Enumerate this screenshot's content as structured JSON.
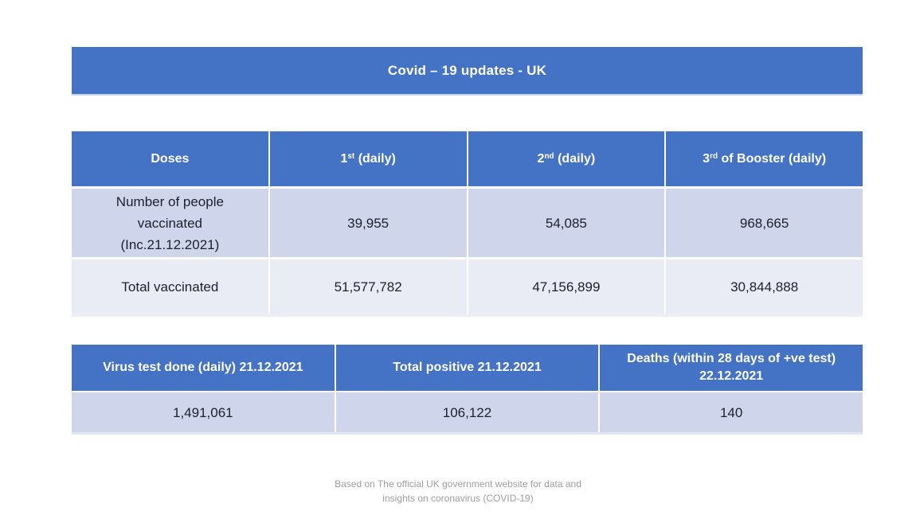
{
  "slide": {
    "title": "Covid – 19 updates - UK"
  },
  "colors": {
    "header_blue": "#4472c4",
    "band_dark": "#cfd5ea",
    "band_light": "#e9ebf5",
    "header_text": "#ffffff",
    "body_text": "#1c212e",
    "footer_text": "#9e9e9e"
  },
  "vaccine_table": {
    "headers": [
      {
        "base": "Doses",
        "sup": "",
        "rest": ""
      },
      {
        "base": "1",
        "sup": "st",
        "rest": " (daily)"
      },
      {
        "base": "2",
        "sup": "nd",
        "rest": " (daily)"
      },
      {
        "base": "3",
        "sup": "rd",
        "rest": " of Booster (daily)"
      }
    ],
    "rows": [
      {
        "label_lines": [
          "Number of people",
          "vaccinated",
          "(Inc.21.12.2021)"
        ],
        "values": [
          "39,955",
          "54,085",
          "968,665"
        ]
      },
      {
        "label_lines": [
          "Total vaccinated"
        ],
        "values": [
          "51,577,782",
          "47,156,899",
          "30,844,888"
        ]
      }
    ]
  },
  "stats_table": {
    "headers": [
      "Virus test done (daily) 21.12.2021",
      "Total positive 21.12.2021",
      "Deaths (within 28 days of +ve test) 22.12.2021"
    ],
    "values": [
      "1,491,061",
      "106,122",
      "140"
    ]
  },
  "footer": {
    "lines": [
      "Based on The official UK government website for data and",
      "insights on coronavirus (COVID-19)"
    ]
  }
}
